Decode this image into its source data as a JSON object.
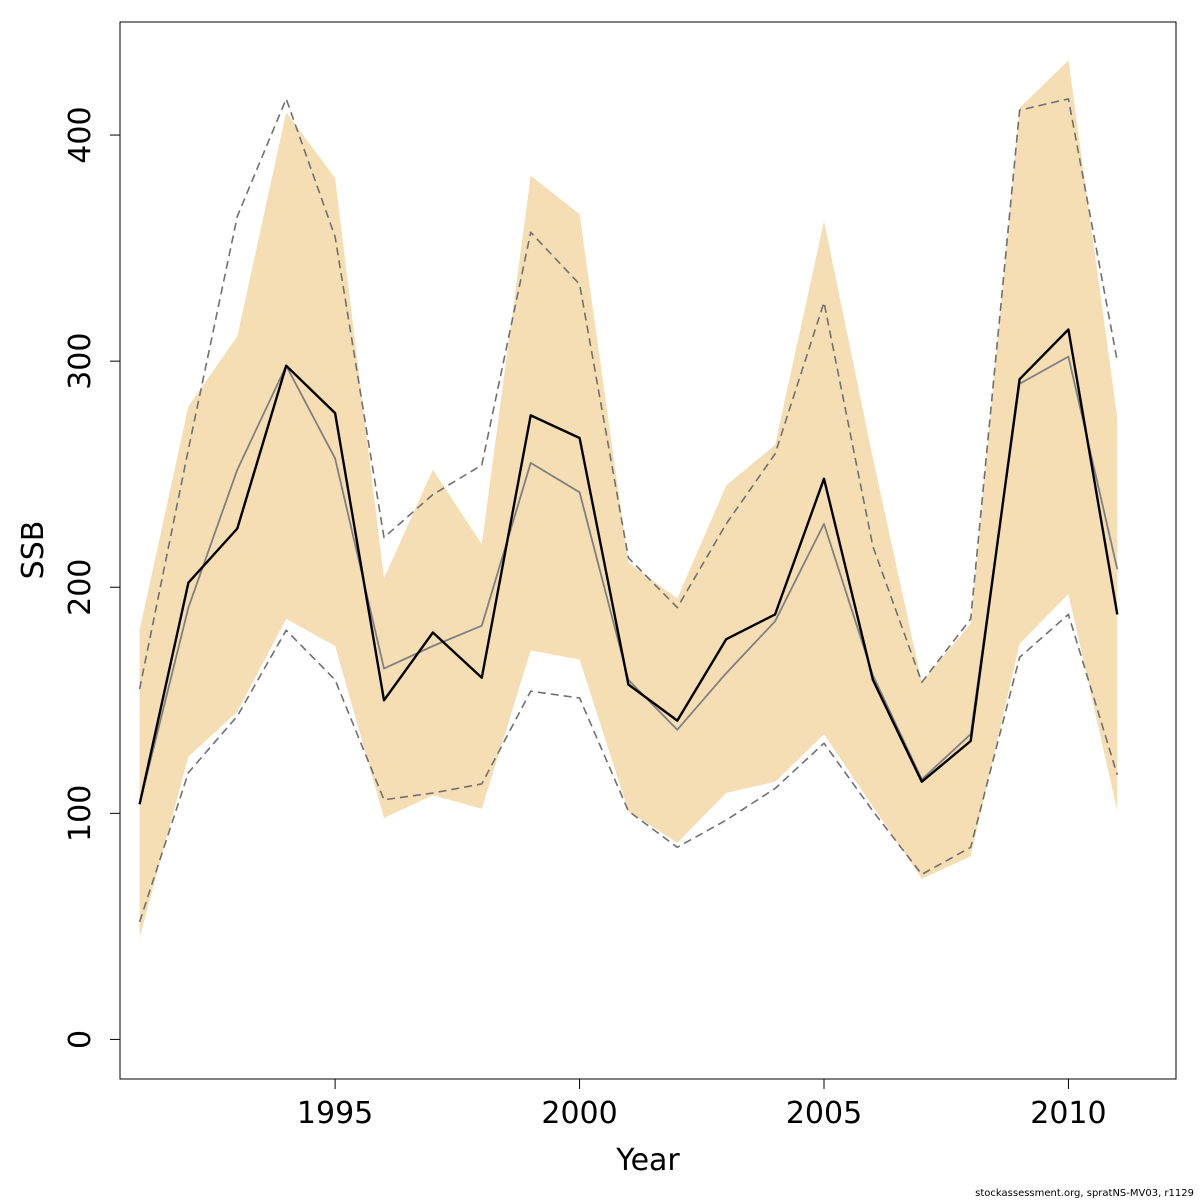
{
  "chart_data": {
    "type": "line",
    "xlabel": "Year",
    "ylabel": "SSB",
    "xlim": [
      1990.6,
      2012.2
    ],
    "ylim": [
      -17.5,
      450.0
    ],
    "x_ticks": [
      1995,
      2000,
      2005,
      2010
    ],
    "y_ticks": [
      0,
      100,
      200,
      300,
      400
    ],
    "x": [
      1991,
      1992,
      1993,
      1994,
      1995,
      1996,
      1997,
      1998,
      1999,
      2000,
      2001,
      2002,
      2003,
      2004,
      2005,
      2006,
      2007,
      2008,
      2009,
      2010,
      2011
    ],
    "band": {
      "color": "#F5DEB3",
      "lower": [
        45,
        125,
        145,
        186,
        174,
        98,
        108,
        102,
        172,
        168,
        101,
        87,
        109,
        114,
        135,
        103,
        71,
        81,
        175,
        197,
        101
      ],
      "upper": [
        181,
        280,
        311,
        410,
        381,
        204,
        252,
        219,
        382,
        365,
        211,
        195,
        245,
        263,
        362,
        257,
        158,
        184,
        412,
        433,
        275
      ]
    },
    "series": [
      {
        "color": "#000000",
        "style": "solid",
        "width": 2.4,
        "values": [
          104,
          202,
          226,
          298,
          277,
          150,
          180,
          160,
          276,
          266,
          157,
          141,
          177,
          188,
          248,
          159,
          114,
          132,
          292,
          314,
          188
        ]
      },
      {
        "color": "#808080",
        "style": "solid",
        "width": 1.8,
        "values": [
          104,
          191,
          252,
          298,
          257,
          164,
          174,
          183,
          255,
          242,
          159,
          137,
          162,
          185,
          228,
          161,
          115,
          135,
          290,
          302,
          208
        ]
      },
      {
        "color": "#707070",
        "style": "dashed",
        "width": 1.6,
        "values": [
          155,
          261,
          364,
          416,
          355,
          222,
          241,
          254,
          357,
          334,
          213,
          191,
          228,
          259,
          326,
          218,
          158,
          186,
          411,
          416,
          300
        ]
      },
      {
        "color": "#707070",
        "style": "dashed",
        "width": 1.6,
        "values": [
          52,
          118,
          143,
          181,
          159,
          106,
          109,
          113,
          154,
          151,
          101,
          85,
          97,
          111,
          131,
          101,
          73,
          85,
          169,
          188,
          117
        ]
      }
    ],
    "grid": false,
    "legend": "none"
  },
  "credit": "stockassessment.org, spratNS-MV03, r1129"
}
